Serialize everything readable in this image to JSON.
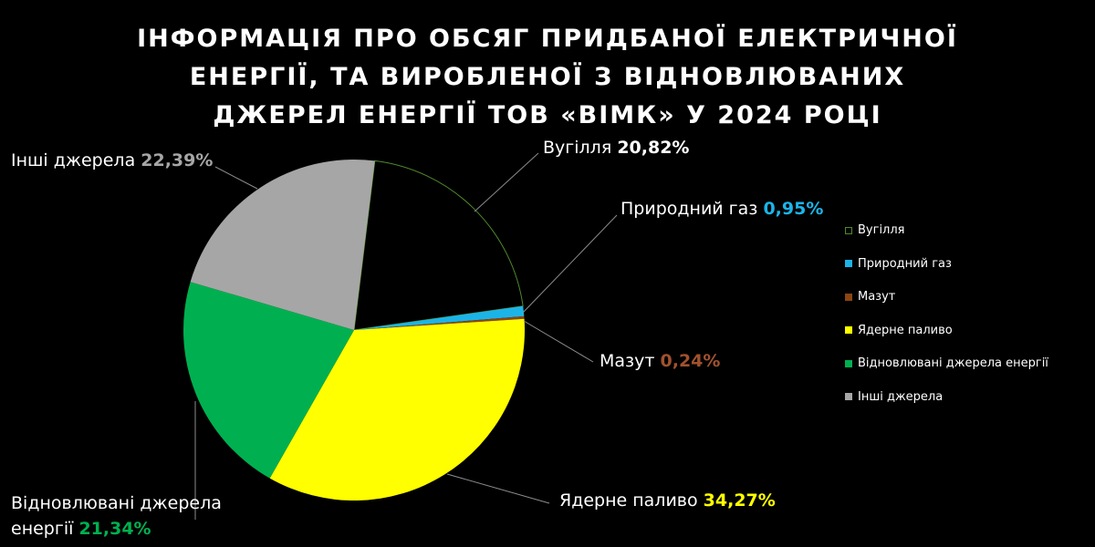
{
  "chart_data": {
    "type": "pie",
    "title": "ІНФОРМАЦІЯ ПРО ОБСЯГ ПРИДБАНОЇ ЕЛЕКТРИЧНОЇ ЕНЕРГІЇ, ТА ВИРОБЛЕНОЇ З ВІДНОВЛЮВАНИХ ДЖЕРЕЛ ЕНЕРГІЇ ТОВ «ВІМК» У 2024 РОЦІ",
    "categories": [
      "Вугілля",
      "Природний газ",
      "Мазут",
      "Ядерне паливо",
      "Відновлювані джерела енергії",
      "Інші джерела"
    ],
    "values": [
      20.82,
      0.95,
      0.24,
      34.27,
      21.34,
      22.39
    ],
    "value_labels": [
      "20,82%",
      "0,95%",
      "0,24%",
      "34,27%",
      "21,34%",
      "22,39%"
    ],
    "colors": [
      "#000000",
      "#1cb4e8",
      "#8b4513",
      "#ffff00",
      "#00b050",
      "#a6a6a6"
    ],
    "label_colors": [
      "#ffffff",
      "#1cb4e8",
      "#a0522d",
      "#ffff00",
      "#00b050",
      "#a6a6a6"
    ],
    "legend": "right"
  }
}
